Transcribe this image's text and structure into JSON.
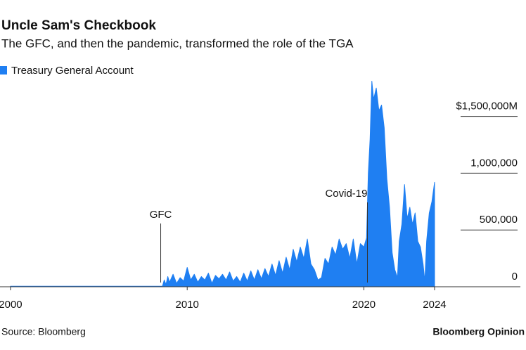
{
  "chart_data": {
    "type": "area",
    "title": "Uncle Sam's Checkbook",
    "subtitle": "The GFC, and then the pandemic, transformed the role of the TGA",
    "source": "Source: Bloomberg",
    "brand": "Bloomberg Opinion",
    "x": [
      2000,
      2008.6,
      2008.7,
      2008.8,
      2008.9,
      2009.0,
      2009.2,
      2009.4,
      2009.6,
      2009.8,
      2010.0,
      2010.2,
      2010.4,
      2010.6,
      2010.8,
      2011.0,
      2011.2,
      2011.4,
      2011.6,
      2011.8,
      2012.0,
      2012.2,
      2012.4,
      2012.6,
      2012.8,
      2013.0,
      2013.2,
      2013.4,
      2013.6,
      2013.8,
      2014.0,
      2014.2,
      2014.4,
      2014.6,
      2014.8,
      2015.0,
      2015.2,
      2015.4,
      2015.6,
      2015.8,
      2016.0,
      2016.2,
      2016.4,
      2016.6,
      2016.8,
      2017.0,
      2017.2,
      2017.4,
      2017.6,
      2017.8,
      2018.0,
      2018.2,
      2018.4,
      2018.6,
      2018.8,
      2019.0,
      2019.2,
      2019.4,
      2019.6,
      2019.8,
      2020.0,
      2020.15,
      2020.25,
      2020.35,
      2020.45,
      2020.55,
      2020.7,
      2020.85,
      2021.0,
      2021.15,
      2021.3,
      2021.45,
      2021.6,
      2021.75,
      2021.9,
      2022.0,
      2022.15,
      2022.3,
      2022.45,
      2022.6,
      2022.75,
      2022.9,
      2023.05,
      2023.2,
      2023.35,
      2023.45,
      2023.55,
      2023.7,
      2023.85,
      2024.0
    ],
    "series": [
      {
        "name": "Treasury General Account",
        "color": "#1f7ff2",
        "values": [
          5000,
          5000,
          60000,
          20000,
          90000,
          40000,
          110000,
          30000,
          80000,
          50000,
          170000,
          60000,
          110000,
          40000,
          90000,
          60000,
          120000,
          30000,
          100000,
          70000,
          110000,
          60000,
          130000,
          50000,
          90000,
          40000,
          120000,
          50000,
          140000,
          60000,
          150000,
          70000,
          160000,
          90000,
          200000,
          100000,
          230000,
          120000,
          260000,
          150000,
          330000,
          220000,
          350000,
          250000,
          420000,
          200000,
          150000,
          60000,
          80000,
          250000,
          200000,
          350000,
          280000,
          420000,
          330000,
          380000,
          250000,
          420000,
          200000,
          380000,
          350000,
          430000,
          1000000,
          1300000,
          1810000,
          1650000,
          1750000,
          1550000,
          1600000,
          1400000,
          950000,
          700000,
          300000,
          150000,
          80000,
          400000,
          550000,
          900000,
          600000,
          700000,
          550000,
          650000,
          400000,
          350000,
          200000,
          50000,
          400000,
          650000,
          750000,
          920000
        ]
      }
    ],
    "xlim": [
      1999.5,
      2029
    ],
    "xticks": [
      2000,
      2010,
      2020,
      2024
    ],
    "ylim": [
      0,
      1900000
    ],
    "yticks": [
      0,
      {
        "value": 500000,
        "label": "500,000"
      },
      {
        "value": 1000000,
        "label": "1,000,000"
      },
      {
        "value": 1500000,
        "label": "$1,500,000M"
      }
    ],
    "annotations": [
      {
        "text": "GFC",
        "x": 2008.5
      },
      {
        "text": "Covid-19",
        "x": 2020.2
      }
    ]
  }
}
